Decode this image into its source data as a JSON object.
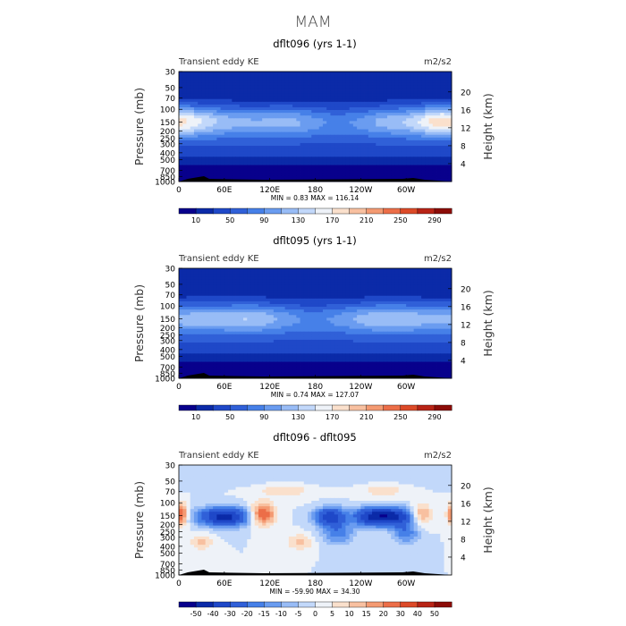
{
  "figure_title": "MAM",
  "chart_data": [
    {
      "type": "heatmap",
      "title": "dflt096 (yrs 1-1)",
      "left_label": "Transient eddy KE",
      "units": "m2/s2",
      "ylabel": "Pressure (mb)",
      "ylabel_right": "Height (km)",
      "pressure_ticks": [
        "30",
        "50",
        "70",
        "100",
        "150",
        "200",
        "250",
        "300",
        "400",
        "500",
        "700",
        "850",
        "1000"
      ],
      "height_ticks": [
        "20",
        "16",
        "12",
        "8",
        "4"
      ],
      "x_ticks": [
        "0",
        "60E",
        "120E",
        "180",
        "120W",
        "60W"
      ],
      "stats_text": "MIN =    0.83   MAX = 116.14",
      "min": 0.83,
      "max": 116.14,
      "colorbar_labels": [
        "10",
        "50",
        "90",
        "130",
        "170",
        "210",
        "250",
        "290"
      ],
      "levels": [
        0,
        10,
        30,
        50,
        70,
        90,
        110,
        130,
        150,
        170,
        190,
        210,
        230,
        250,
        270,
        290,
        310
      ],
      "field": "ke96"
    },
    {
      "type": "heatmap",
      "title": "dflt095 (yrs 1-1)",
      "left_label": "Transient eddy KE",
      "units": "m2/s2",
      "ylabel": "Pressure (mb)",
      "ylabel_right": "Height (km)",
      "pressure_ticks": [
        "30",
        "50",
        "70",
        "100",
        "150",
        "200",
        "250",
        "300",
        "400",
        "500",
        "700",
        "850",
        "1000"
      ],
      "height_ticks": [
        "20",
        "16",
        "12",
        "8",
        "4"
      ],
      "x_ticks": [
        "0",
        "60E",
        "120E",
        "180",
        "120W",
        "60W"
      ],
      "stats_text": "MIN =    0.74   MAX = 127.07",
      "min": 0.74,
      "max": 127.07,
      "colorbar_labels": [
        "10",
        "50",
        "90",
        "130",
        "170",
        "210",
        "250",
        "290"
      ],
      "levels": [
        0,
        10,
        30,
        50,
        70,
        90,
        110,
        130,
        150,
        170,
        190,
        210,
        230,
        250,
        270,
        290,
        310
      ],
      "field": "ke95"
    },
    {
      "type": "heatmap",
      "title": "dflt096 - dflt095",
      "left_label": "Transient eddy KE",
      "units": "m2/s2",
      "ylabel": "Pressure (mb)",
      "ylabel_right": "Height (km)",
      "pressure_ticks": [
        "30",
        "50",
        "70",
        "100",
        "150",
        "200",
        "250",
        "300",
        "400",
        "500",
        "700",
        "850",
        "1000"
      ],
      "height_ticks": [
        "20",
        "16",
        "12",
        "8",
        "4"
      ],
      "x_ticks": [
        "0",
        "60E",
        "120E",
        "180",
        "120W",
        "60W"
      ],
      "stats_text": "MIN =  -59.90   MAX =  34.30",
      "min": -59.9,
      "max": 34.3,
      "colorbar_labels": [
        "-50",
        "-40",
        "-30",
        "-20",
        "-15",
        "-10",
        "-5",
        "0",
        "5",
        "10",
        "15",
        "20",
        "30",
        "40",
        "50"
      ],
      "levels": [
        -60,
        -50,
        -40,
        -30,
        -20,
        -15,
        -10,
        -5,
        0,
        5,
        10,
        15,
        20,
        30,
        40,
        50,
        60
      ],
      "field": "diff"
    }
  ],
  "palette": [
    "#08008c",
    "#0b2aa8",
    "#1f48c8",
    "#3060d8",
    "#4680e8",
    "#6a9cf0",
    "#98bcf6",
    "#c2d8fa",
    "#eef2f8",
    "#fae0cc",
    "#f8c0a0",
    "#f49a72",
    "#ec6e48",
    "#dc4a28",
    "#b82416",
    "#8c0c08"
  ]
}
